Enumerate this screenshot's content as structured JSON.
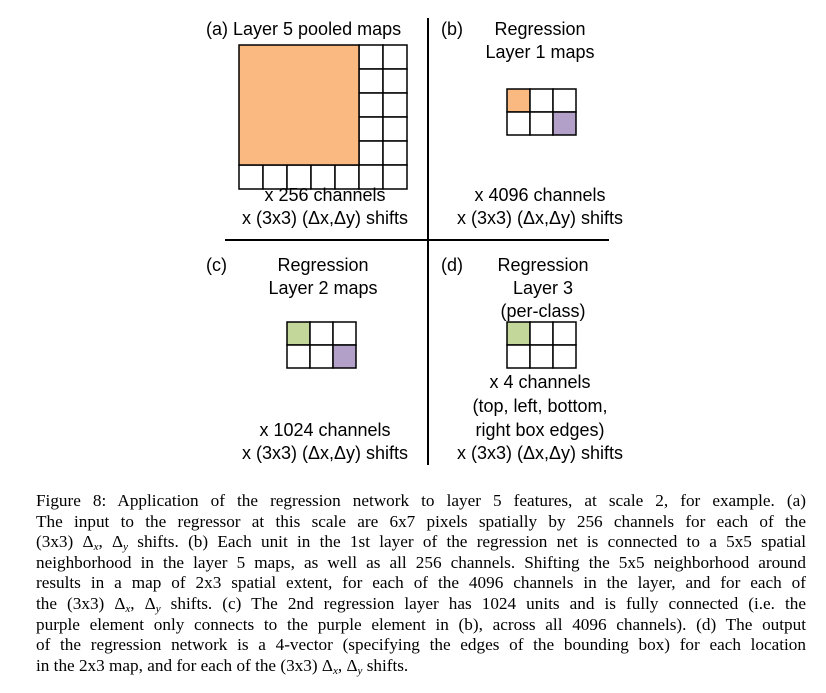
{
  "colors": {
    "orange": "#FBB982",
    "green": "#C3D79B",
    "purple": "#B2A0C8",
    "line": "#000000"
  },
  "panel_a": {
    "title": "(a) Layer 5 pooled maps",
    "channels": "x 256 channels",
    "shifts": "x (3x3) (Δx,Δy) shifts"
  },
  "panel_b": {
    "prefix": "(b)",
    "title_line1": "Regression",
    "title_line2": "Layer 1 maps",
    "channels": "x 4096 channels",
    "shifts": "x (3x3) (Δx,Δy) shifts"
  },
  "panel_c": {
    "prefix": "(c)",
    "title_line1": "Regression",
    "title_line2": "Layer 2 maps",
    "channels": "x 1024 channels",
    "shifts": "x (3x3) (Δx,Δy) shifts"
  },
  "panel_d": {
    "prefix": "(d)",
    "title_line1": "Regression",
    "title_line2": "Layer 3",
    "title_line3": "(per-class)",
    "channels": "x 4 channels",
    "edges_line1": "(top, left, bottom,",
    "edges_line2": "right box edges)",
    "shifts": "x (3x3) (Δx,Δy) shifts"
  },
  "caption": {
    "line1": "Figure 8: Application of the regression network to layer 5 features, at scale 2, for example. (a)",
    "line2": "The input to the regressor at this scale are 6x7 pixels spatially by 256 channels for each of the",
    "line3_a": "(3x3) ",
    "line3_b": " shifts. (b) Each unit in the 1st layer of the regression net is connected to a 5x5 spatial",
    "line4": "neighborhood in the layer 5 maps, as well as all 256 channels. Shifting the 5x5 neighborhood around",
    "line5": "results in a map of 2x3 spatial extent, for each of the 4096 channels in the layer, and for each of",
    "line6_a": "the (3x3) ",
    "line6_b": " shifts. (c) The 2nd regression layer has 1024 units and is fully connected (i.e. the",
    "line7": "purple element only connects to the purple element in (b), across all 4096 channels). (d) The output",
    "line8": "of the regression network is a 4-vector (specifying the edges of the bounding box) for each location",
    "line9_a": "in the 2x3 map, and for each of the (3x3) ",
    "line9_b": " shifts.",
    "delta": "Δ",
    "x": "x",
    "y": "y",
    "comma": ", "
  }
}
